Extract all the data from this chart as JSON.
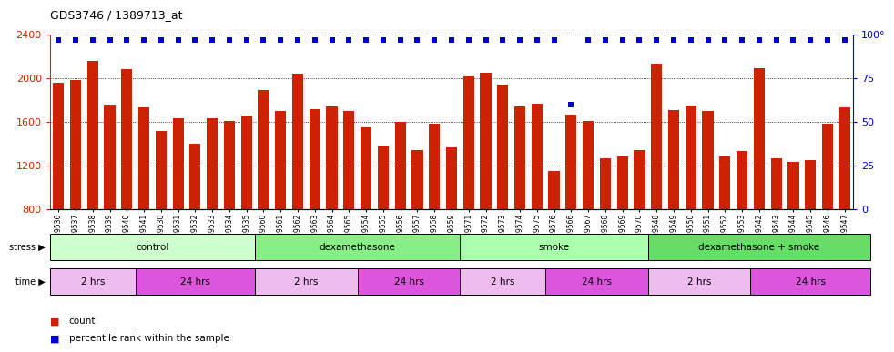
{
  "title": "GDS3746 / 1389713_at",
  "bar_labels": [
    "GSM389536",
    "GSM389537",
    "GSM389538",
    "GSM389539",
    "GSM389540",
    "GSM389541",
    "GSM389530",
    "GSM389531",
    "GSM389532",
    "GSM389533",
    "GSM389534",
    "GSM389535",
    "GSM389560",
    "GSM389561",
    "GSM389562",
    "GSM389563",
    "GSM389564",
    "GSM389565",
    "GSM389554",
    "GSM389555",
    "GSM389556",
    "GSM389557",
    "GSM389558",
    "GSM389559",
    "GSM389571",
    "GSM389572",
    "GSM389573",
    "GSM389574",
    "GSM389575",
    "GSM389576",
    "GSM389566",
    "GSM389567",
    "GSM389568",
    "GSM389569",
    "GSM389570",
    "GSM389548",
    "GSM389549",
    "GSM389550",
    "GSM389551",
    "GSM389552",
    "GSM389553",
    "GSM389542",
    "GSM389543",
    "GSM389544",
    "GSM389545",
    "GSM389546",
    "GSM389547"
  ],
  "bar_values": [
    1960,
    1980,
    2160,
    1760,
    2080,
    1730,
    1520,
    1630,
    1400,
    1630,
    1610,
    1660,
    1890,
    1700,
    2040,
    1720,
    1740,
    1700,
    1550,
    1380,
    1600,
    1340,
    1580,
    1370,
    2020,
    2050,
    1940,
    1740,
    1770,
    1150,
    1670,
    1610,
    1270,
    1280,
    1340,
    2130,
    1710,
    1750,
    1700,
    1280,
    1330,
    2090,
    1270,
    1230,
    1250,
    1580,
    1730
  ],
  "percentile_values": [
    97,
    97,
    97,
    97,
    97,
    97,
    97,
    97,
    97,
    97,
    97,
    97,
    97,
    97,
    97,
    97,
    97,
    97,
    97,
    97,
    97,
    97,
    97,
    97,
    97,
    97,
    97,
    97,
    97,
    97,
    60,
    97,
    97,
    97,
    97,
    97,
    97,
    97,
    97,
    97,
    97,
    97,
    97,
    97,
    97,
    97,
    97
  ],
  "bar_color": "#CC2200",
  "percentile_color": "#0000CC",
  "ylim_left": [
    800,
    2400
  ],
  "ylim_right": [
    0,
    100
  ],
  "yticks_left": [
    800,
    1200,
    1600,
    2000,
    2400
  ],
  "yticks_right": [
    0,
    25,
    50,
    75,
    100
  ],
  "groups": [
    {
      "label": "control",
      "start": 0,
      "end": 12,
      "color": "#CCFFCC"
    },
    {
      "label": "dexamethasone",
      "start": 12,
      "end": 24,
      "color": "#88EE88"
    },
    {
      "label": "smoke",
      "start": 24,
      "end": 35,
      "color": "#AAFFAA"
    },
    {
      "label": "dexamethasone + smoke",
      "start": 35,
      "end": 48,
      "color": "#66DD66"
    }
  ],
  "time_groups": [
    {
      "label": "2 hrs",
      "start": 0,
      "end": 5,
      "color": "#EEBCEE"
    },
    {
      "label": "24 hrs",
      "start": 5,
      "end": 12,
      "color": "#DD55DD"
    },
    {
      "label": "2 hrs",
      "start": 12,
      "end": 18,
      "color": "#EEBCEE"
    },
    {
      "label": "24 hrs",
      "start": 18,
      "end": 24,
      "color": "#DD55DD"
    },
    {
      "label": "2 hrs",
      "start": 24,
      "end": 29,
      "color": "#EEBCEE"
    },
    {
      "label": "24 hrs",
      "start": 29,
      "end": 35,
      "color": "#DD55DD"
    },
    {
      "label": "2 hrs",
      "start": 35,
      "end": 41,
      "color": "#EEBCEE"
    },
    {
      "label": "24 hrs",
      "start": 41,
      "end": 48,
      "color": "#DD55DD"
    }
  ],
  "ylabel_left_color": "#CC2200",
  "ylabel_right_color": "#0000CC",
  "background_color": "#FFFFFF"
}
